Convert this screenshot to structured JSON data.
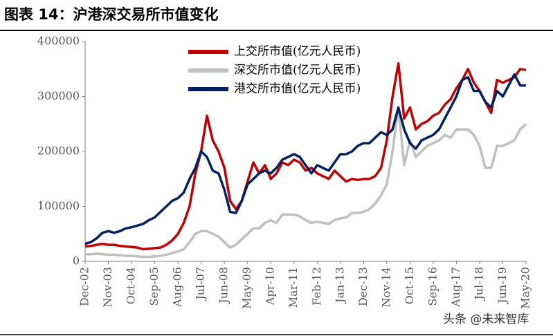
{
  "title": "图表 14：沪港深交易所市值变化",
  "watermark": "头条 @未来智库",
  "chart_data": {
    "type": "line",
    "categories": [
      "Dec-02",
      null,
      null,
      null,
      "Nov-03",
      null,
      null,
      null,
      "Oct-04",
      null,
      null,
      null,
      "Sep-05",
      null,
      null,
      null,
      "Aug-06",
      null,
      null,
      null,
      "Jul-07",
      null,
      null,
      null,
      "Jun-08",
      null,
      null,
      null,
      "May-09",
      null,
      null,
      null,
      "Apr-10",
      null,
      null,
      null,
      "Mar-11",
      null,
      null,
      null,
      "Feb-12",
      null,
      null,
      null,
      "Jan-13",
      null,
      null,
      null,
      "Dec-13",
      null,
      null,
      null,
      "Nov-14",
      null,
      null,
      null,
      "Oct-15",
      null,
      null,
      null,
      "Sep-16",
      null,
      null,
      null,
      "Aug-17",
      null,
      null,
      null,
      "Jul-18",
      null,
      null,
      null,
      "Jun-19",
      null,
      null,
      null,
      "May-20"
    ],
    "series": [
      {
        "name": "上交所市值(亿元人民币)",
        "color": "#c00000",
        "values": [
          27000,
          28000,
          30000,
          32000,
          30000,
          30000,
          28000,
          27000,
          26000,
          25000,
          22000,
          23000,
          24000,
          25000,
          30000,
          38000,
          50000,
          70000,
          100000,
          160000,
          200000,
          265000,
          220000,
          200000,
          170000,
          110000,
          95000,
          110000,
          145000,
          180000,
          160000,
          175000,
          150000,
          160000,
          180000,
          175000,
          185000,
          180000,
          165000,
          170000,
          160000,
          155000,
          150000,
          165000,
          155000,
          145000,
          150000,
          148000,
          150000,
          150000,
          155000,
          170000,
          220000,
          300000,
          360000,
          260000,
          280000,
          240000,
          250000,
          255000,
          265000,
          270000,
          285000,
          295000,
          315000,
          330000,
          350000,
          325000,
          310000,
          290000,
          270000,
          330000,
          325000,
          330000,
          335000,
          350000,
          348000
        ]
      },
      {
        "name": "深交所市值(亿元人民币)",
        "color": "#bfbfbf",
        "values": [
          13000,
          13000,
          14000,
          13000,
          12000,
          12000,
          11000,
          10000,
          10000,
          9000,
          8000,
          8000,
          9000,
          10000,
          12000,
          15000,
          18000,
          22000,
          35000,
          50000,
          55000,
          55000,
          50000,
          45000,
          35000,
          25000,
          30000,
          40000,
          50000,
          60000,
          60000,
          70000,
          75000,
          70000,
          85000,
          85000,
          85000,
          82000,
          75000,
          70000,
          72000,
          70000,
          68000,
          75000,
          78000,
          80000,
          88000,
          88000,
          90000,
          95000,
          105000,
          120000,
          140000,
          200000,
          280000,
          175000,
          220000,
          190000,
          200000,
          210000,
          215000,
          220000,
          230000,
          225000,
          240000,
          240000,
          240000,
          230000,
          210000,
          170000,
          170000,
          210000,
          210000,
          215000,
          220000,
          240000,
          250000
        ]
      },
      {
        "name": "港交所市值(亿元人民币)",
        "color": "#002060",
        "values": [
          32000,
          35000,
          42000,
          52000,
          55000,
          52000,
          55000,
          60000,
          62000,
          65000,
          68000,
          75000,
          80000,
          90000,
          100000,
          110000,
          115000,
          125000,
          150000,
          170000,
          200000,
          190000,
          165000,
          160000,
          130000,
          90000,
          88000,
          110000,
          140000,
          150000,
          160000,
          165000,
          160000,
          170000,
          185000,
          190000,
          195000,
          190000,
          175000,
          160000,
          175000,
          170000,
          165000,
          180000,
          195000,
          195000,
          200000,
          210000,
          215000,
          215000,
          225000,
          235000,
          230000,
          240000,
          280000,
          240000,
          215000,
          205000,
          220000,
          225000,
          230000,
          240000,
          260000,
          280000,
          300000,
          330000,
          335000,
          310000,
          310000,
          290000,
          280000,
          310000,
          300000,
          320000,
          340000,
          320000,
          320000
        ]
      }
    ],
    "ylim": [
      0,
      400000
    ],
    "yticks": [
      0,
      100000,
      200000,
      300000,
      400000
    ],
    "grid": false,
    "legend": "upper-left"
  }
}
